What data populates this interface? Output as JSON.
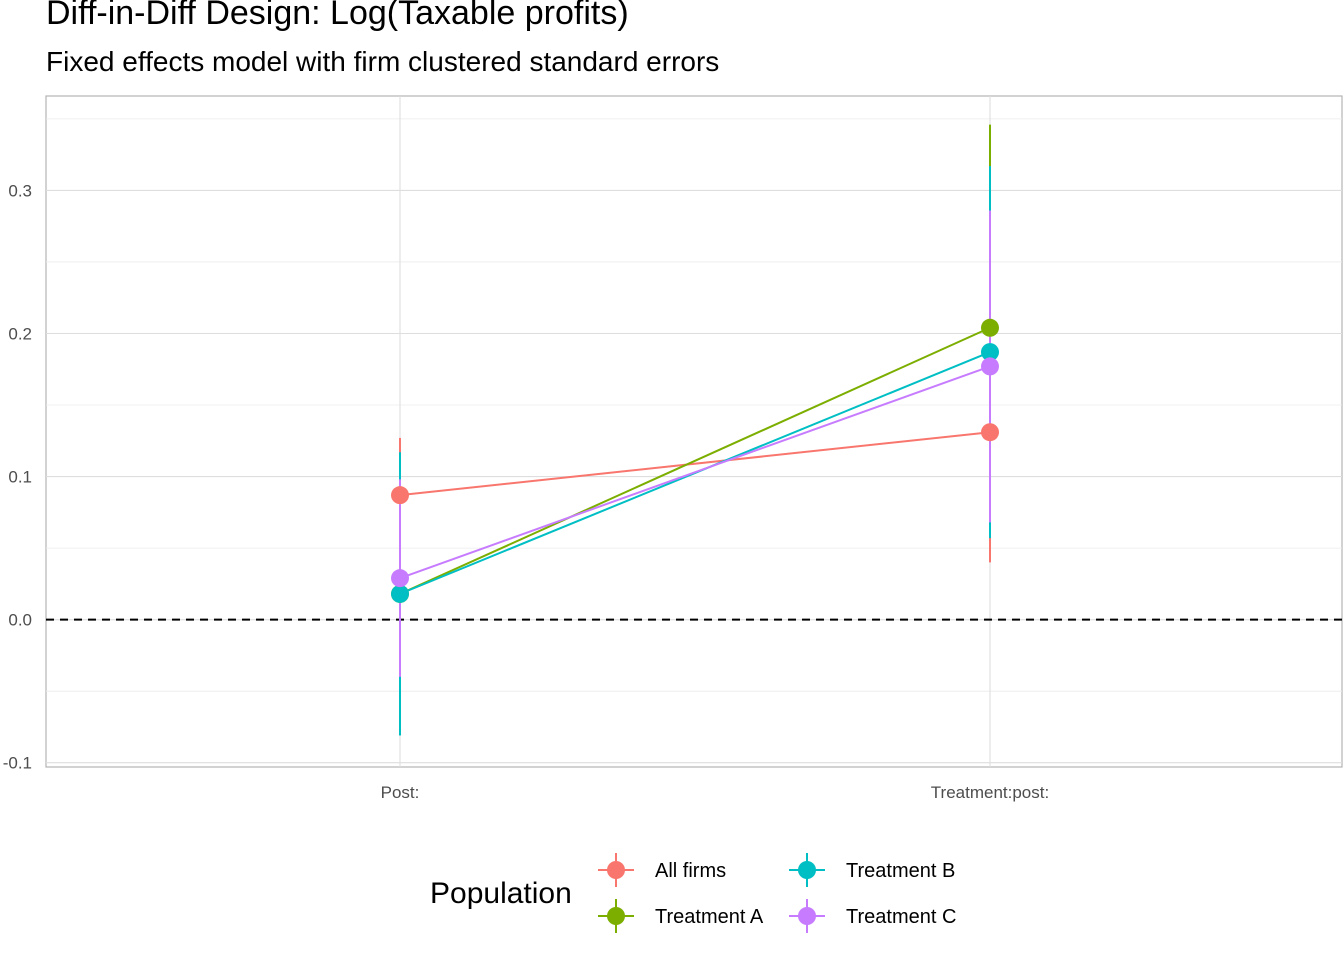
{
  "chart_data": {
    "type": "line",
    "title": "Diff-in-Diff Design: Log(Taxable profits)",
    "subtitle": "Fixed effects model with firm clustered standard errors",
    "xlabel": "",
    "ylabel": "",
    "categories": [
      "Post:",
      "Treatment:post:"
    ],
    "ylim": [
      -0.103,
      0.366
    ],
    "yticks": [
      -0.1,
      0.0,
      0.1,
      0.2,
      0.3
    ],
    "ytick_labels": [
      "-0.1",
      "0.0",
      "0.1",
      "0.2",
      "0.3"
    ],
    "reference_line": {
      "y": 0.0,
      "style": "dashed",
      "color": "#000000"
    },
    "grid": true,
    "legend": {
      "title": "Population",
      "position": "bottom"
    },
    "series": [
      {
        "name": "All firms",
        "color": "#F8766D",
        "values": [
          0.087,
          0.131
        ],
        "lower": [
          0.047,
          0.04
        ],
        "upper": [
          0.127,
          0.222
        ]
      },
      {
        "name": "Treatment A",
        "color": "#7CAE00",
        "values": [
          0.018,
          0.204
        ],
        "lower": [
          -0.04,
          0.062
        ],
        "upper": [
          0.076,
          0.346
        ]
      },
      {
        "name": "Treatment B",
        "color": "#00BFC4",
        "values": [
          0.018,
          0.187
        ],
        "lower": [
          -0.081,
          0.057
        ],
        "upper": [
          0.117,
          0.317
        ]
      },
      {
        "name": "Treatment C",
        "color": "#C77CFF",
        "values": [
          0.029,
          0.177
        ],
        "lower": [
          -0.04,
          0.068
        ],
        "upper": [
          0.098,
          0.286
        ]
      }
    ]
  }
}
